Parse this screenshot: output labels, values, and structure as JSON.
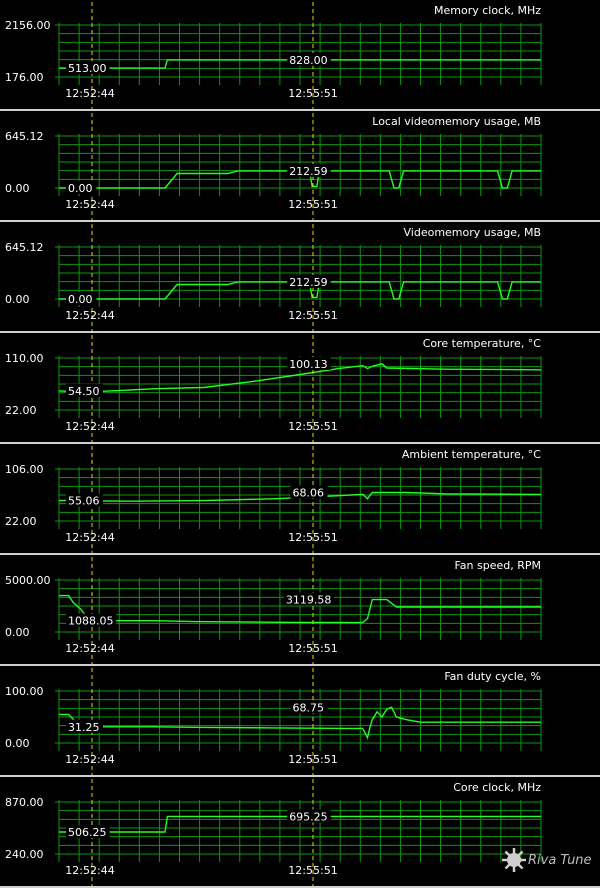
{
  "colors": {
    "background": "#000000",
    "grid": "#0a9a0a",
    "line": "#22ff22",
    "separator": "#d0d0d0",
    "marker": "#e6d800",
    "text": "#ffffff"
  },
  "time_markers": [
    "12:52:44",
    "12:55:51"
  ],
  "logo": {
    "text": "Riva Tuner"
  },
  "chart_data": [
    {
      "type": "line",
      "title": "Memory clock, MHz",
      "ylim": [
        176,
        2156
      ],
      "ylabels": [
        "2156.00",
        "176.00"
      ],
      "markers": [
        "513.00",
        "828.00"
      ],
      "marker_values": [
        513,
        828
      ],
      "points": [
        [
          0,
          513
        ],
        [
          0.22,
          513
        ],
        [
          0.225,
          828
        ],
        [
          1,
          828
        ]
      ]
    },
    {
      "type": "line",
      "title": "Local videomemory usage, MB",
      "ylim": [
        0,
        645.12
      ],
      "ylabels": [
        "645.12",
        "0.00"
      ],
      "markers": [
        "0.00",
        "212.59"
      ],
      "marker_values": [
        0,
        212.59
      ],
      "points": [
        [
          0,
          0
        ],
        [
          0.22,
          0
        ],
        [
          0.245,
          180
        ],
        [
          0.35,
          180
        ],
        [
          0.37,
          212.59
        ],
        [
          0.52,
          212.59
        ],
        [
          0.525,
          20
        ],
        [
          0.535,
          20
        ],
        [
          0.54,
          212.59
        ],
        [
          0.685,
          212.59
        ],
        [
          0.695,
          0
        ],
        [
          0.705,
          0
        ],
        [
          0.715,
          212.59
        ],
        [
          0.91,
          212.59
        ],
        [
          0.92,
          0
        ],
        [
          0.93,
          0
        ],
        [
          0.94,
          212.59
        ],
        [
          1,
          212.59
        ]
      ]
    },
    {
      "type": "line",
      "title": "Videomemory usage, MB",
      "ylim": [
        0,
        645.12
      ],
      "ylabels": [
        "645.12",
        "0.00"
      ],
      "markers": [
        "0.00",
        "212.59"
      ],
      "marker_values": [
        0,
        212.59
      ],
      "points": [
        [
          0,
          0
        ],
        [
          0.22,
          0
        ],
        [
          0.245,
          180
        ],
        [
          0.35,
          180
        ],
        [
          0.37,
          212.59
        ],
        [
          0.52,
          212.59
        ],
        [
          0.525,
          20
        ],
        [
          0.535,
          20
        ],
        [
          0.54,
          212.59
        ],
        [
          0.685,
          212.59
        ],
        [
          0.695,
          0
        ],
        [
          0.705,
          0
        ],
        [
          0.715,
          212.59
        ],
        [
          0.91,
          212.59
        ],
        [
          0.92,
          0
        ],
        [
          0.93,
          0
        ],
        [
          0.94,
          212.59
        ],
        [
          1,
          212.59
        ]
      ]
    },
    {
      "type": "line",
      "title": "Core temperature, °C",
      "ylim": [
        22,
        110
      ],
      "ylabels": [
        "110.00",
        "22.00"
      ],
      "markers": [
        "54.50",
        "100.13"
      ],
      "marker_values": [
        54.5,
        100.13
      ],
      "points": [
        [
          0,
          54.5
        ],
        [
          0.05,
          52
        ],
        [
          0.2,
          58
        ],
        [
          0.3,
          60
        ],
        [
          0.4,
          70
        ],
        [
          0.5,
          82
        ],
        [
          0.58,
          92
        ],
        [
          0.63,
          97
        ],
        [
          0.64,
          92
        ],
        [
          0.65,
          96
        ],
        [
          0.67,
          100.13
        ],
        [
          0.68,
          93
        ],
        [
          0.8,
          91
        ],
        [
          1,
          90
        ]
      ]
    },
    {
      "type": "line",
      "title": "Ambient temperature, °C",
      "ylim": [
        22,
        106
      ],
      "ylabels": [
        "106.00",
        "22.00"
      ],
      "markers": [
        "55.06",
        "68.06"
      ],
      "marker_values": [
        55.06,
        68.06
      ],
      "points": [
        [
          0,
          55.06
        ],
        [
          0.15,
          54
        ],
        [
          0.3,
          55
        ],
        [
          0.45,
          58
        ],
        [
          0.56,
          62
        ],
        [
          0.63,
          65
        ],
        [
          0.64,
          58
        ],
        [
          0.65,
          68.06
        ],
        [
          0.72,
          68.06
        ],
        [
          0.8,
          66
        ],
        [
          1,
          65
        ]
      ]
    },
    {
      "type": "line",
      "title": "Fan speed, RPM",
      "ylim": [
        0,
        5000
      ],
      "ylabels": [
        "5000.00",
        "0.00"
      ],
      "markers": [
        "1088.05",
        "3119.58"
      ],
      "marker_values": [
        1088.05,
        3119.58
      ],
      "points": [
        [
          0,
          3500
        ],
        [
          0.02,
          3500
        ],
        [
          0.03,
          2800
        ],
        [
          0.045,
          2200
        ],
        [
          0.06,
          1300
        ],
        [
          0.08,
          1088.05
        ],
        [
          0.2,
          1088.05
        ],
        [
          0.28,
          1000
        ],
        [
          0.5,
          920
        ],
        [
          0.63,
          900
        ],
        [
          0.64,
          1300
        ],
        [
          0.65,
          3119.58
        ],
        [
          0.66,
          3119.58
        ],
        [
          0.68,
          3119.58
        ],
        [
          0.7,
          2400
        ],
        [
          1,
          2400
        ]
      ]
    },
    {
      "type": "line",
      "title": "Fan duty cycle, %",
      "ylim": [
        0,
        100
      ],
      "ylabels": [
        "100.00",
        "0.00"
      ],
      "markers": [
        "31.25",
        "68.75"
      ],
      "marker_values": [
        31.25,
        68.75
      ],
      "points": [
        [
          0,
          55
        ],
        [
          0.02,
          55
        ],
        [
          0.03,
          45
        ],
        [
          0.04,
          35
        ],
        [
          0.06,
          31.25
        ],
        [
          0.2,
          31.25
        ],
        [
          0.3,
          30
        ],
        [
          0.45,
          29
        ],
        [
          0.6,
          28
        ],
        [
          0.63,
          28
        ],
        [
          0.64,
          10
        ],
        [
          0.645,
          30
        ],
        [
          0.65,
          45
        ],
        [
          0.66,
          60
        ],
        [
          0.67,
          50
        ],
        [
          0.68,
          65
        ],
        [
          0.69,
          68.75
        ],
        [
          0.7,
          50
        ],
        [
          0.72,
          45
        ],
        [
          0.75,
          40
        ],
        [
          1,
          40
        ]
      ]
    },
    {
      "type": "line",
      "title": "Core clock, MHz",
      "ylim": [
        240,
        870
      ],
      "ylabels": [
        "870.00",
        "240.00"
      ],
      "markers": [
        "506.25",
        "695.25"
      ],
      "marker_values": [
        506.25,
        695.25
      ],
      "points": [
        [
          0,
          506.25
        ],
        [
          0.22,
          506.25
        ],
        [
          0.225,
          695.25
        ],
        [
          1,
          695.25
        ]
      ]
    }
  ]
}
